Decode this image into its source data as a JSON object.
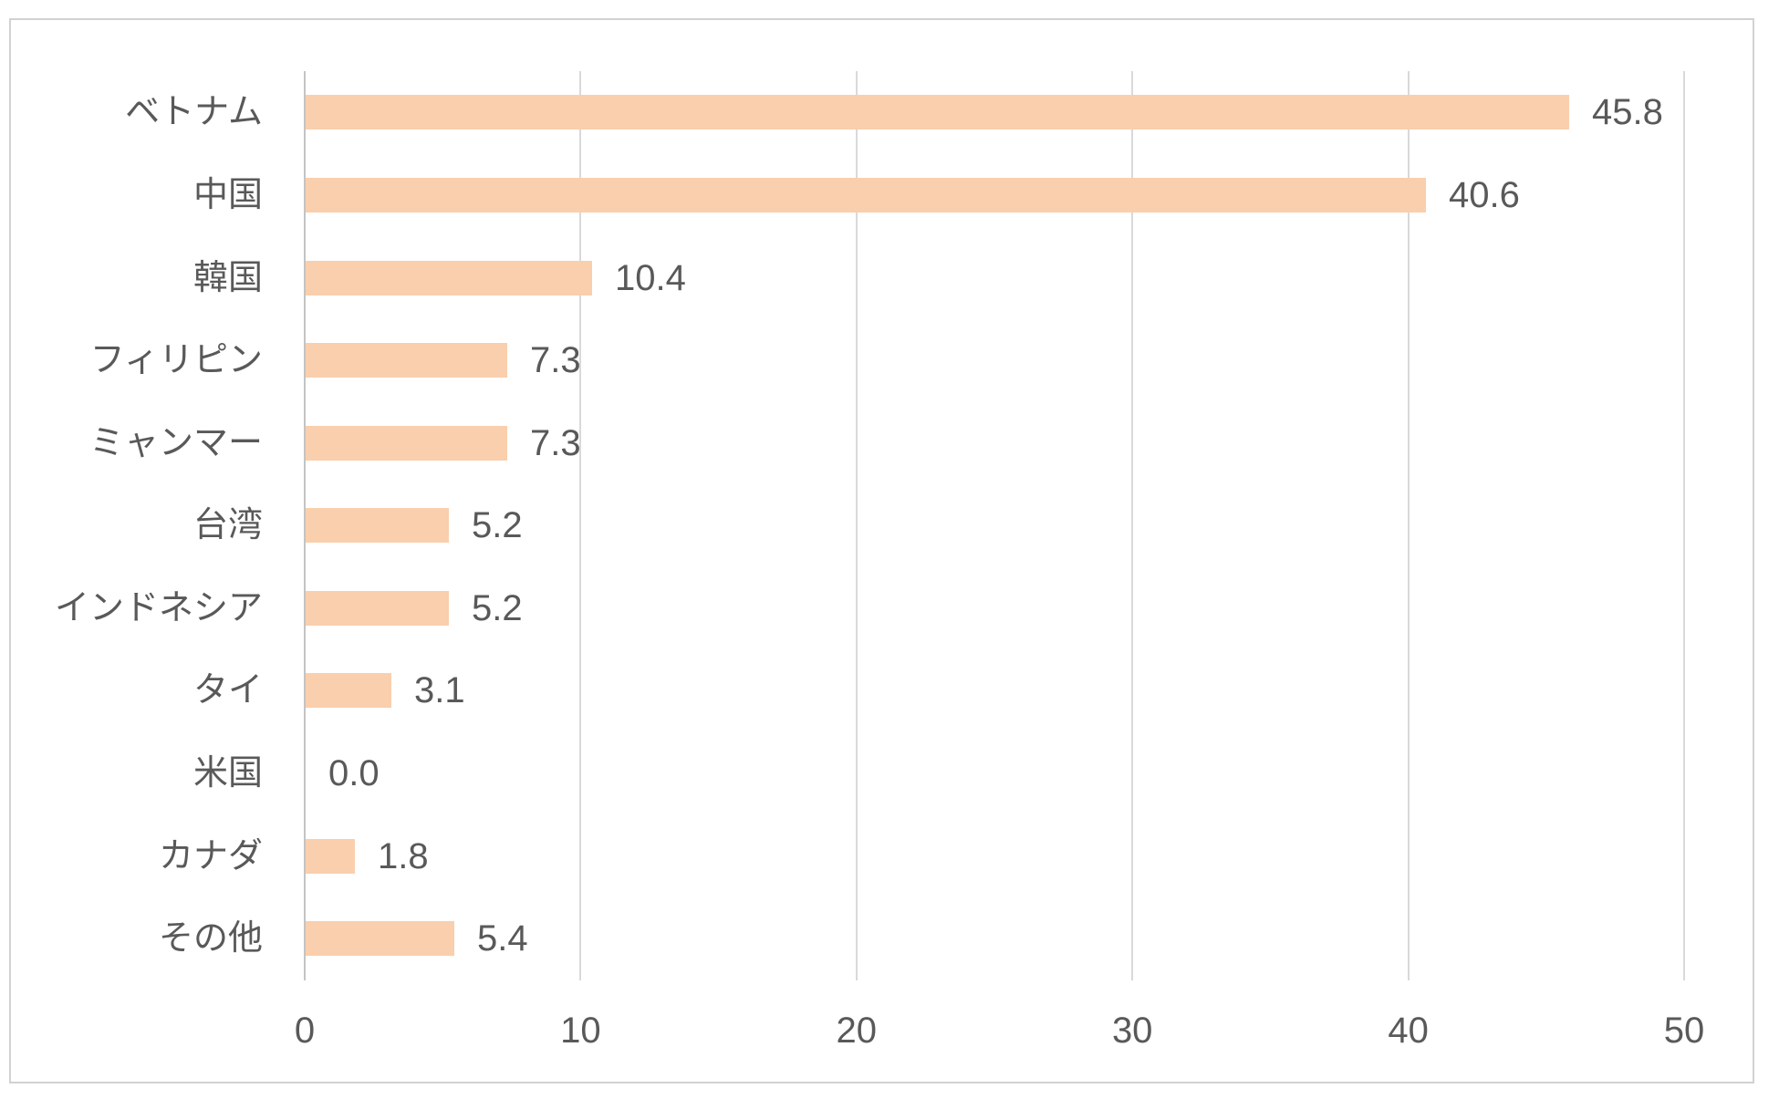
{
  "chart_data": {
    "type": "bar",
    "orientation": "horizontal",
    "title": "",
    "xlabel": "",
    "ylabel": "",
    "categories": [
      "ベトナム",
      "中国",
      "韓国",
      "フィリピン",
      "ミャンマー",
      "台湾",
      "インドネシア",
      "タイ",
      "米国",
      "カナダ",
      "その他"
    ],
    "values": [
      45.8,
      40.6,
      10.4,
      7.3,
      7.3,
      5.2,
      5.2,
      3.1,
      0.0,
      1.8,
      5.4
    ],
    "value_labels": [
      "45.8",
      "40.6",
      "10.4",
      "7.3",
      "7.3",
      "5.2",
      "5.2",
      "3.1",
      "0.0",
      "1.8",
      "5.4"
    ],
    "xlim": [
      0,
      50
    ],
    "x_ticks": [
      0,
      10,
      20,
      30,
      40,
      50
    ],
    "grid": "vertical-gridlines-on",
    "legend": "none",
    "colors": {
      "bar_fill": "#f9cfad",
      "gridline": "#d9d9d9",
      "zero_axis_line": "#c4c4c4",
      "text": "#595959",
      "frame_border": "#d2d2d2",
      "background": "#ffffff"
    }
  }
}
